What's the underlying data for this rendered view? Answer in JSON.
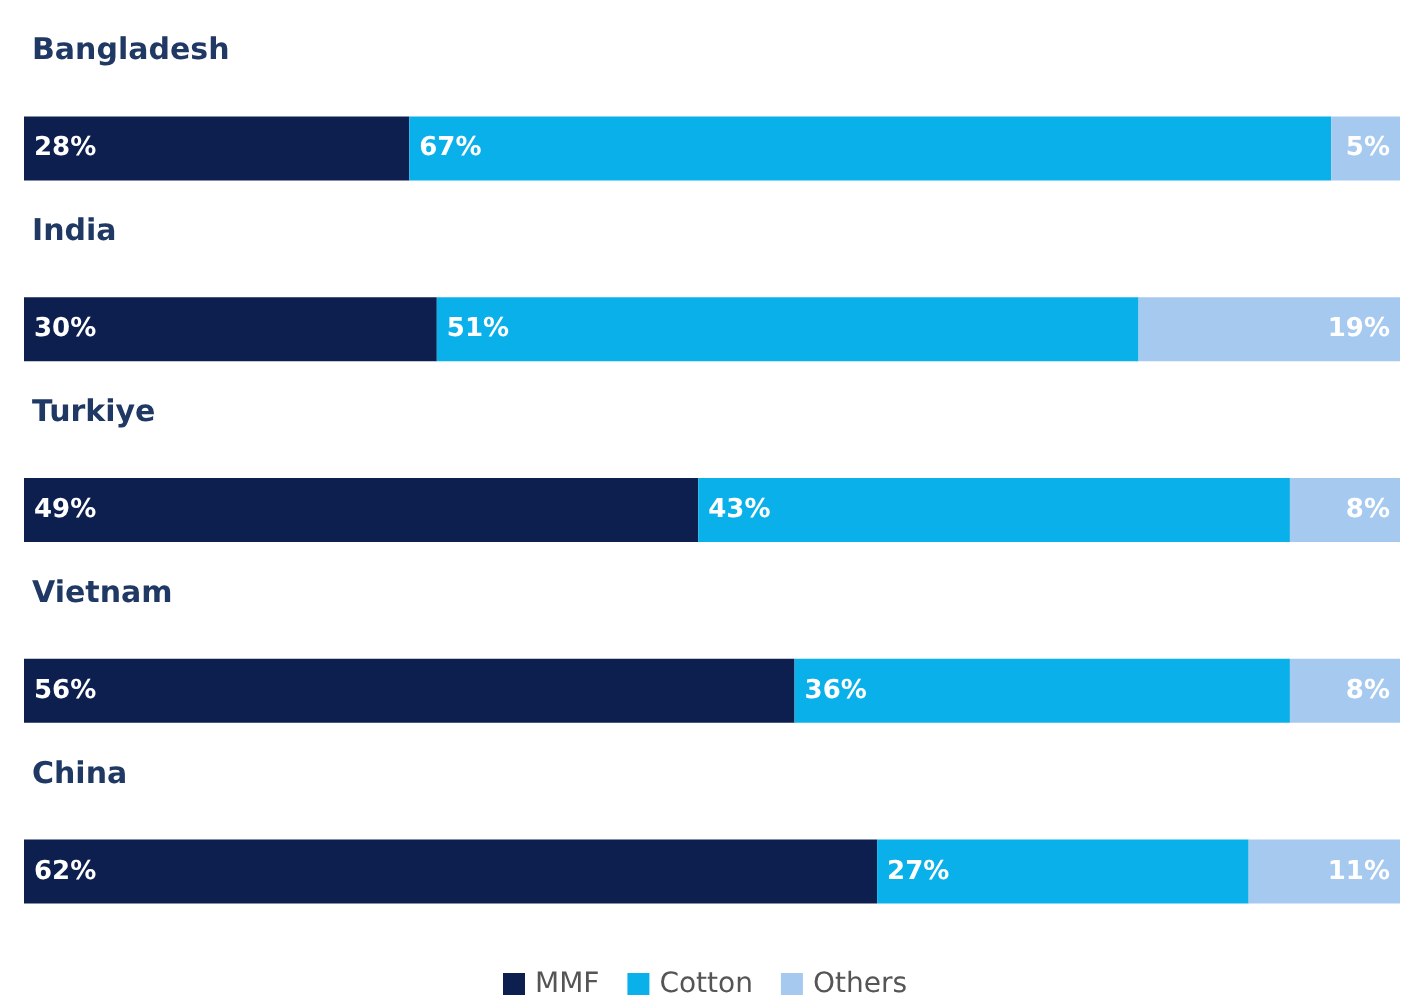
{
  "chart_data": {
    "type": "bar",
    "orientation": "horizontal",
    "stacked": true,
    "categories": [
      "Bangladesh",
      "India",
      "Turkiye",
      "Vietnam",
      "China"
    ],
    "series": [
      {
        "name": "MMF",
        "color": "#0d1f4f",
        "values": [
          28,
          30,
          49,
          56,
          62
        ],
        "value_labels": [
          "28%",
          "30%",
          "49%",
          "56%",
          "62%"
        ]
      },
      {
        "name": "Cotton",
        "color": "#0ab0ea",
        "values": [
          67,
          51,
          43,
          36,
          27
        ],
        "value_labels": [
          "67%",
          "51%",
          "43%",
          "36%",
          "27%"
        ]
      },
      {
        "name": "Others",
        "color": "#a6c9f0",
        "values": [
          5,
          19,
          8,
          8,
          11
        ],
        "value_labels": [
          "5%",
          "19%",
          "8%",
          "8%",
          "11%"
        ]
      }
    ],
    "legend": "bottom",
    "grid": false,
    "tick_labels": "y"
  }
}
